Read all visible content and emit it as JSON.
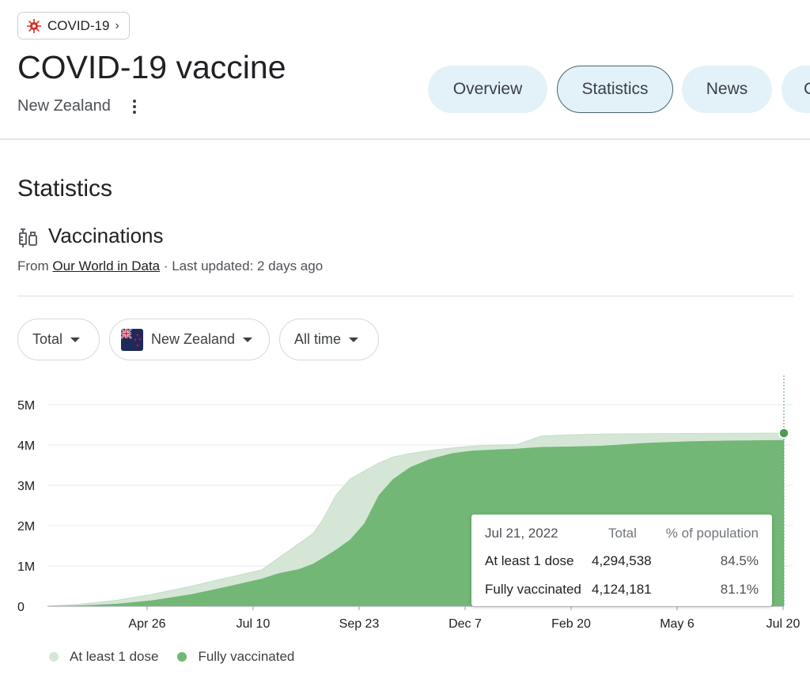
{
  "breadcrumb": {
    "label": "COVID-19"
  },
  "header": {
    "title": "COVID-19 vaccine",
    "subtitle": "New Zealand"
  },
  "tabs": [
    {
      "label": "Overview",
      "active": false
    },
    {
      "label": "Statistics",
      "active": true
    },
    {
      "label": "News",
      "active": false
    },
    {
      "label": "C",
      "active": false
    }
  ],
  "section": {
    "title": "Statistics",
    "card_title": "Vaccinations",
    "source_prefix": "From ",
    "source_link": "Our World in Data",
    "source_suffix": " · Last updated: 2 days ago"
  },
  "filters": {
    "metric": "Total",
    "location": "New Zealand",
    "range": "All time"
  },
  "colors": {
    "tab_bg": "#e3f2f8",
    "first_dose": "#d5e6d6",
    "fully_vaccinated": "#72b776",
    "marker": "#4f9a55"
  },
  "chart_data": {
    "type": "area",
    "x_tick_labels": [
      "Apr 26",
      "Jul 10",
      "Sep 23",
      "Dec 7",
      "Feb 20",
      "May 6",
      "Jul 20"
    ],
    "y_tick_labels": [
      "0",
      "1M",
      "2M",
      "3M",
      "4M",
      "5M"
    ],
    "ylim": [
      0,
      5000000
    ],
    "x_range": [
      "2021-02-20",
      "2022-07-21"
    ],
    "x": [
      "2021-02-20",
      "2021-03-15",
      "2021-04-10",
      "2021-05-05",
      "2021-06-01",
      "2021-06-25",
      "2021-07-20",
      "2021-08-01",
      "2021-08-15",
      "2021-08-25",
      "2021-09-01",
      "2021-09-10",
      "2021-09-20",
      "2021-09-30",
      "2021-10-10",
      "2021-10-20",
      "2021-11-01",
      "2021-11-15",
      "2021-12-01",
      "2021-12-15",
      "2022-01-01",
      "2022-01-15",
      "2022-02-01",
      "2022-02-20",
      "2022-03-15",
      "2022-04-15",
      "2022-05-15",
      "2022-06-15",
      "2022-07-21"
    ],
    "series": [
      {
        "name": "At least 1 dose",
        "values": [
          0,
          50000,
          150000,
          300000,
          500000,
          700000,
          900000,
          1200000,
          1550000,
          1800000,
          2150000,
          2750000,
          3150000,
          3350000,
          3550000,
          3700000,
          3790000,
          3860000,
          3930000,
          3970000,
          4000000,
          4010000,
          4220000,
          4250000,
          4270000,
          4280000,
          4285000,
          4290000,
          4294538
        ]
      },
      {
        "name": "Fully vaccinated",
        "values": [
          0,
          20000,
          60000,
          150000,
          300000,
          480000,
          680000,
          820000,
          920000,
          1050000,
          1200000,
          1400000,
          1650000,
          2050000,
          2750000,
          3150000,
          3450000,
          3650000,
          3800000,
          3860000,
          3890000,
          3910000,
          3950000,
          3960000,
          3980000,
          4050000,
          4090000,
          4110000,
          4124181
        ]
      }
    ],
    "tooltip": {
      "date": "Jul 21, 2022",
      "col_total": "Total",
      "col_pct": "% of population",
      "rows": [
        {
          "label": "At least 1 dose",
          "total": "4,294,538",
          "pct": "84.5%"
        },
        {
          "label": "Fully vaccinated",
          "total": "4,124,181",
          "pct": "81.1%"
        }
      ]
    },
    "legend": [
      "At least 1 dose",
      "Fully vaccinated"
    ]
  }
}
